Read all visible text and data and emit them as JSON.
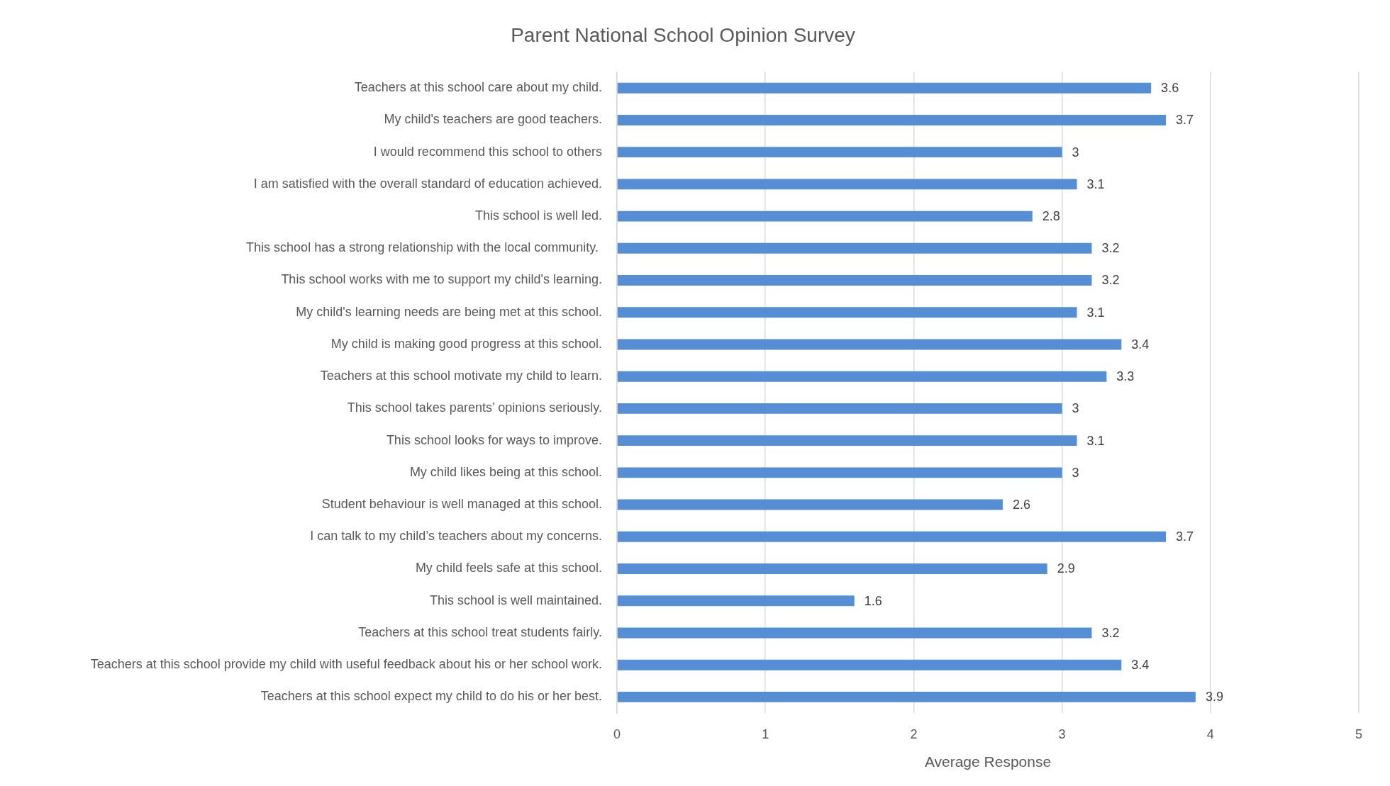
{
  "chart_data": {
    "type": "bar",
    "orientation": "horizontal",
    "title": "Parent National School Opinion Survey",
    "xlabel": "Average Response",
    "categories": [
      "Teachers at this school care about my child.",
      "My child's teachers are good teachers.",
      "I would recommend this school to others",
      "I am satisfied with the overall standard of education achieved.",
      "This school is well led.",
      "This school has a strong relationship with the local community. ",
      "This school works with me to support my child's learning.",
      "My child's learning needs are being met at this school.",
      "My child is making good progress at this school.",
      "Teachers at this school motivate my child to learn.",
      "This school takes parents’ opinions seriously.",
      "This school looks for ways to improve.",
      "My child likes being at this school.",
      "Student behaviour is well managed at this school.",
      "I can talk to my child’s teachers about my concerns.",
      "My child feels safe at this school.",
      "This school is well maintained.",
      "Teachers at this school treat students fairly.",
      "Teachers at this school provide my child with useful feedback about his or her school work.",
      "Teachers at this school expect my child to do his or her best."
    ],
    "values": [
      3.6,
      3.7,
      3,
      3.1,
      2.8,
      3.2,
      3.2,
      3.1,
      3.4,
      3.3,
      3,
      3.1,
      3,
      2.6,
      3.7,
      2.9,
      1.6,
      3.2,
      3.4,
      3.9
    ],
    "color": "#558ed5",
    "xlim": [
      0,
      5
    ],
    "xticks": [
      0,
      1,
      2,
      3,
      4,
      5
    ],
    "grid": "x",
    "data_labels": true
  }
}
